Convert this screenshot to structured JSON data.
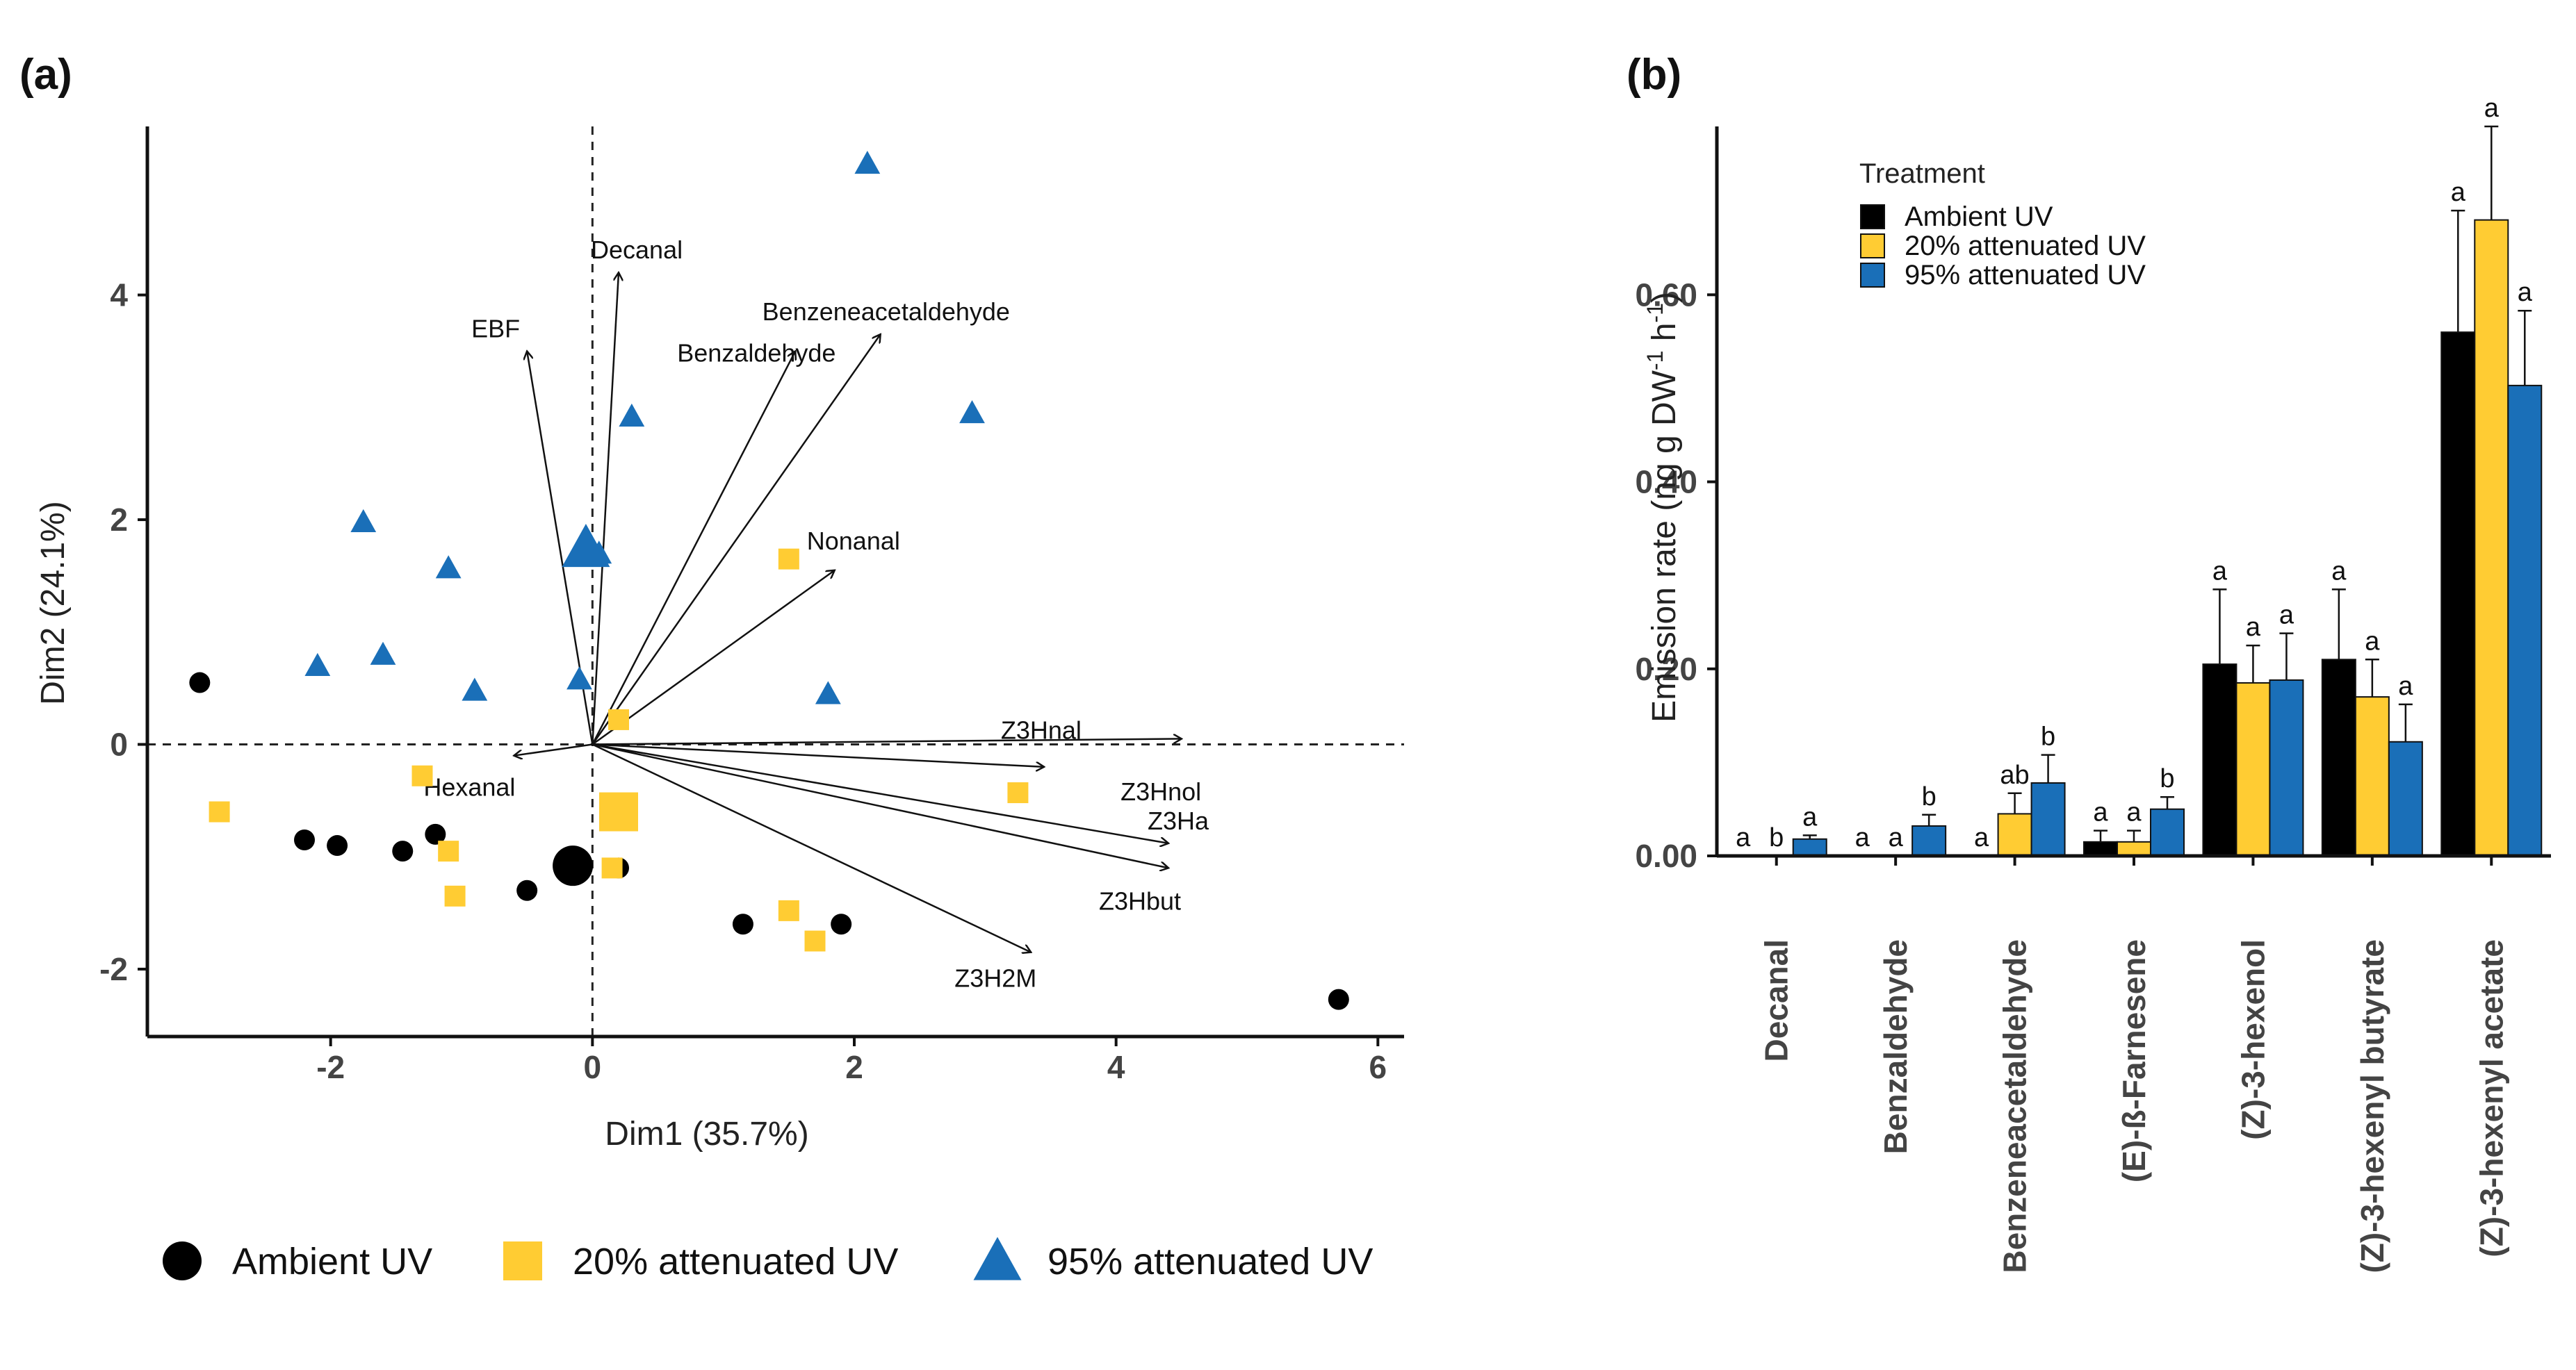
{
  "chart_data": [
    {
      "panel": "(a)",
      "type": "scatter",
      "subtype": "PCA biplot",
      "xlabel": "Dim1 (35.7%)",
      "ylabel": "Dim2 (24.1%)",
      "xlim": [
        -3.4,
        6.2
      ],
      "ylim": [
        -2.6,
        5.5
      ],
      "xticks": [
        -2,
        0,
        2,
        4,
        6
      ],
      "yticks": [
        -2,
        0,
        2,
        4
      ],
      "colors": {
        "ambient": "#000000",
        "att20": "#FFCC33",
        "att95": "#1A6FB8"
      },
      "series": [
        {
          "name": "Ambient UV",
          "marker": "circle",
          "color": "#000000",
          "points": [
            [
              -3.0,
              0.55
            ],
            [
              -2.2,
              -0.85
            ],
            [
              -1.95,
              -0.9
            ],
            [
              -1.45,
              -0.95
            ],
            [
              -1.2,
              -0.8
            ],
            [
              -0.5,
              -1.3
            ],
            [
              0.2,
              -1.1
            ],
            [
              1.15,
              -1.6
            ],
            [
              1.9,
              -1.6
            ],
            [
              5.7,
              -2.27
            ]
          ],
          "centroid": [
            -0.15,
            -1.08
          ]
        },
        {
          "name": "20% attenuated UV",
          "marker": "square",
          "color": "#FFCC33",
          "points": [
            [
              -2.85,
              -0.6
            ],
            [
              -1.3,
              -0.28
            ],
            [
              -1.1,
              -0.95
            ],
            [
              -1.05,
              -1.35
            ],
            [
              0.15,
              -1.1
            ],
            [
              0.2,
              0.22
            ],
            [
              1.5,
              1.65
            ],
            [
              1.5,
              -1.48
            ],
            [
              1.7,
              -1.75
            ],
            [
              3.25,
              -0.43
            ]
          ],
          "centroid": [
            0.2,
            -0.6
          ]
        },
        {
          "name": "95% attenuated UV",
          "marker": "triangle",
          "color": "#1A6FB8",
          "points": [
            [
              -2.1,
              0.7
            ],
            [
              -1.75,
              1.98
            ],
            [
              -1.6,
              0.8
            ],
            [
              -1.1,
              1.57
            ],
            [
              -0.9,
              0.48
            ],
            [
              -0.1,
              0.58
            ],
            [
              0.05,
              1.7
            ],
            [
              0.3,
              2.92
            ],
            [
              1.8,
              0.45
            ],
            [
              2.1,
              5.17
            ],
            [
              2.9,
              2.95
            ]
          ],
          "centroid": [
            -0.05,
            1.75
          ]
        }
      ],
      "loadings": [
        {
          "name": "Decanal",
          "x": 0.2,
          "y": 4.2
        },
        {
          "name": "EBF",
          "x": -0.5,
          "y": 3.5
        },
        {
          "name": "Benzaldehyde",
          "x": 1.55,
          "y": 3.5
        },
        {
          "name": "Benzeneacetaldehyde",
          "x": 2.2,
          "y": 3.65
        },
        {
          "name": "Nonanal",
          "x": 1.85,
          "y": 1.55
        },
        {
          "name": "Z3Hnal",
          "x": 4.5,
          "y": 0.05
        },
        {
          "name": "Z3Hnol",
          "x": 3.45,
          "y": -0.2
        },
        {
          "name": "Z3Ha",
          "x": 4.4,
          "y": -0.88
        },
        {
          "name": "Z3Hbut",
          "x": 4.4,
          "y": -1.1
        },
        {
          "name": "Z3H2M",
          "x": 3.35,
          "y": -1.85
        },
        {
          "name": "Hexanal",
          "x": -0.6,
          "y": -0.1
        }
      ],
      "legend": [
        "Ambient UV",
        "20% attenuated UV",
        "95% attenuated UV"
      ],
      "legend_position": "bottom"
    },
    {
      "panel": "(b)",
      "type": "bar",
      "ylabel": "Emission rate (ng g DW",
      "ylabel_sup1": "-1",
      "ylabel_mid": " h",
      "ylabel_sup2": "-1",
      "ylabel_end": ")",
      "ylim": [
        0,
        0.78
      ],
      "yticks": [
        0.0,
        0.2,
        0.4,
        0.6
      ],
      "ytick_labels": [
        "0.00",
        "0.20",
        "0.40",
        "0.60"
      ],
      "legend_title": "Treatment",
      "legend_position": "top-left",
      "categories": [
        "Decanal",
        "Benzaldehyde",
        "Benzeneacetaldehyde",
        "(E)-ß-Farnesene",
        "(Z)-3-hexenol",
        "(Z)-3-hexenyl butyrate",
        "(Z)-3-hexenyl acetate"
      ],
      "series": [
        {
          "name": "Ambient UV",
          "color": "#000000",
          "values": [
            0.0,
            0.0,
            0.0,
            0.015,
            0.205,
            0.21,
            0.56
          ],
          "errors": [
            0.0,
            0.0,
            0.0,
            0.012,
            0.08,
            0.075,
            0.13
          ],
          "letters": [
            "a",
            "a",
            "a",
            "a",
            "a",
            "a",
            "a"
          ]
        },
        {
          "name": "20% attenuated UV",
          "color": "#FFCC33",
          "values": [
            0.0,
            0.0,
            0.045,
            0.015,
            0.185,
            0.17,
            0.68
          ],
          "errors": [
            0.0,
            0.0,
            0.022,
            0.012,
            0.04,
            0.04,
            0.1
          ],
          "letters": [
            "b",
            "a",
            "ab",
            "a",
            "a",
            "a",
            "a"
          ]
        },
        {
          "name": "95% attenuated UV",
          "color": "#1A6FB8",
          "values": [
            0.018,
            0.032,
            0.078,
            0.05,
            0.188,
            0.122,
            0.503
          ],
          "errors": [
            0.004,
            0.012,
            0.03,
            0.013,
            0.05,
            0.04,
            0.08
          ],
          "letters": [
            "a",
            "b",
            "b",
            "b",
            "a",
            "a",
            "a"
          ]
        }
      ]
    }
  ]
}
